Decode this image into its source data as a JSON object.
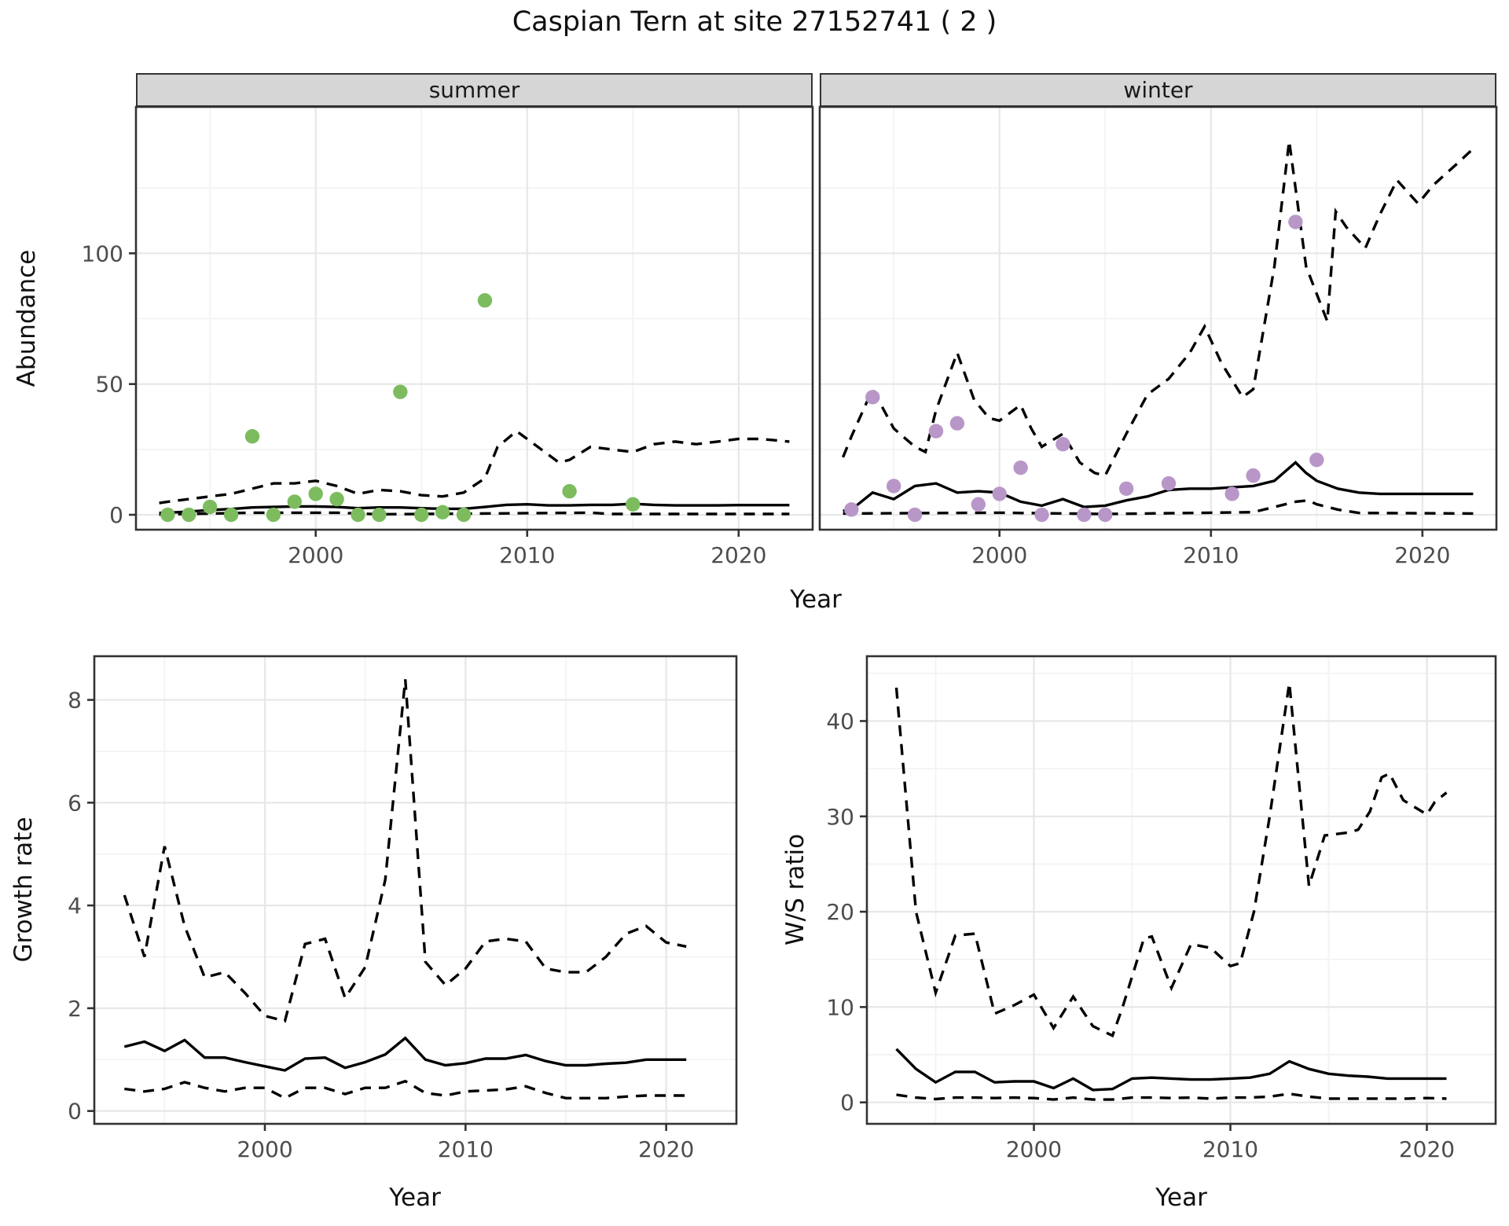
{
  "title": "Caspian Tern at site 27152741 ( 2 )",
  "colors": {
    "summer_point": "#7cbc5e",
    "winter_point": "#b897c8",
    "line": "#000000",
    "grid_major": "#e7e7e7",
    "grid_minor": "#f3f3f3",
    "panel_border": "#333333",
    "strip_bg": "#d6d6d6",
    "tick_text": "#4d4d4d"
  },
  "top_row": {
    "ylabel": "Abundance",
    "xlabel": "Year"
  },
  "chart_data": [
    {
      "id": "summer-abundance",
      "type": "line+scatter",
      "facet_label": "summer",
      "ylabel": "Abundance",
      "xlabel": "Year",
      "xlim": [
        1991.5,
        2023.5
      ],
      "ylim": [
        -5.7,
        156
      ],
      "xticks": [
        2000,
        2010,
        2020
      ],
      "xticks_minor": [
        1995,
        2005,
        2015
      ],
      "yticks": [
        0,
        50,
        100
      ],
      "yticks_minor": [
        25,
        75,
        125
      ],
      "show_y_labels": true,
      "points": {
        "name": "observed-count",
        "x": [
          1993,
          1994,
          1995,
          1996,
          1997,
          1998,
          1999,
          2000,
          2001,
          2002,
          2003,
          2004,
          2005,
          2006,
          2007,
          2008,
          2012,
          2015
        ],
        "y": [
          0,
          0,
          3,
          0,
          30,
          0,
          5,
          8,
          6,
          0,
          0,
          47,
          0,
          1,
          0,
          82,
          9,
          4
        ]
      },
      "series": [
        {
          "name": "median",
          "style": "solid",
          "x": [
            1992.6,
            1993,
            1994,
            1995,
            1996,
            1997,
            1998,
            1999,
            2000,
            2001,
            2002,
            2003,
            2004,
            2005,
            2006,
            2007,
            2008,
            2009,
            2010,
            2011,
            2012,
            2013,
            2014,
            2015,
            2016,
            2017,
            2018,
            2019,
            2020,
            2021,
            2022.4
          ],
          "y": [
            0.7,
            0.8,
            1.2,
            1.8,
            2.2,
            2.8,
            3,
            3.2,
            3.2,
            3,
            2.5,
            2.8,
            2.8,
            2.5,
            2.3,
            2.3,
            3,
            3.8,
            4,
            3.6,
            3.6,
            3.8,
            3.8,
            4.2,
            3.8,
            3.6,
            3.6,
            3.6,
            3.7,
            3.7,
            3.7
          ]
        },
        {
          "name": "upper_ci",
          "style": "dashed",
          "x": [
            1992.6,
            1993,
            1994,
            1995,
            1996,
            1997,
            1998,
            1999,
            2000,
            2001,
            2002,
            2003,
            2004,
            2005,
            2006,
            2007,
            2008,
            2008.6,
            2009.5,
            2010.5,
            2011.5,
            2012,
            2013,
            2014,
            2015,
            2016,
            2017,
            2018,
            2019,
            2020,
            2021,
            2022.4
          ],
          "y": [
            4.5,
            5,
            6,
            7,
            8,
            10,
            12,
            12,
            13,
            11,
            8,
            9.5,
            9,
            7.5,
            7,
            8.5,
            14,
            26,
            32,
            26,
            20,
            21,
            26,
            25,
            24,
            27,
            28,
            27,
            28,
            29,
            29,
            28
          ]
        },
        {
          "name": "lower_ci",
          "style": "dashed",
          "x": [
            1992.6,
            1997,
            2001,
            2003,
            2013,
            2014,
            2022.4
          ],
          "y": [
            0.1,
            0.8,
            0.8,
            0.2,
            0.8,
            0.3,
            0.3
          ]
        }
      ]
    },
    {
      "id": "winter-abundance",
      "type": "line+scatter",
      "facet_label": "winter",
      "ylabel": "Abundance",
      "xlabel": "Year",
      "xlim": [
        1991.5,
        2023.5
      ],
      "ylim": [
        -5.7,
        156
      ],
      "xticks": [
        2000,
        2010,
        2020
      ],
      "xticks_minor": [
        1995,
        2005,
        2015
      ],
      "yticks": [
        0,
        50,
        100
      ],
      "yticks_minor": [
        25,
        75,
        125
      ],
      "show_y_labels": false,
      "points": {
        "name": "observed-count",
        "x": [
          1993,
          1994,
          1995,
          1996,
          1997,
          1998,
          1999,
          2000,
          2001,
          2002,
          2003,
          2004,
          2005,
          2006,
          2008,
          2011,
          2012,
          2014,
          2015
        ],
        "y": [
          2,
          45,
          11,
          0,
          32,
          35,
          4,
          8,
          18,
          0,
          27,
          0,
          0,
          10,
          12,
          8,
          15,
          112,
          21
        ]
      },
      "series": [
        {
          "name": "median",
          "style": "solid",
          "x": [
            1992.6,
            1993,
            1994,
            1995,
            1996,
            1997,
            1998,
            1999,
            2000,
            2001,
            2002,
            2003,
            2004,
            2005,
            2006,
            2007,
            2008,
            2009,
            2010,
            2011,
            2012,
            2013,
            2014,
            2014.5,
            2015,
            2016,
            2017,
            2018,
            2019,
            2020,
            2021,
            2022.4
          ],
          "y": [
            1.5,
            2,
            8.5,
            6,
            11,
            12,
            8.5,
            9,
            8.5,
            5,
            3.5,
            6,
            3,
            3.5,
            5.5,
            7,
            9.5,
            10,
            10,
            10.5,
            11,
            13,
            20,
            16,
            13,
            10,
            8.5,
            8,
            8,
            8,
            8,
            8
          ]
        },
        {
          "name": "upper_ci",
          "style": "dashed",
          "x": [
            1992.6,
            1993,
            1994,
            1995,
            1996,
            1996.5,
            1997,
            1998,
            1998.8,
            1999.5,
            2000,
            2001,
            2001.5,
            2002,
            2003,
            2003.8,
            2004.5,
            2005,
            2006,
            2007,
            2008,
            2009,
            2009.7,
            2010.5,
            2011.5,
            2012,
            2013,
            2013.7,
            2014.5,
            2015.5,
            2015.9,
            2016.4,
            2017.3,
            2018,
            2018.8,
            2019.8,
            2020.5,
            2021.6,
            2022.4
          ],
          "y": [
            22,
            30,
            48,
            33,
            26,
            24,
            40,
            62,
            44,
            37,
            36,
            42,
            33,
            26,
            31,
            20,
            16,
            15,
            31,
            46,
            52,
            62,
            72,
            58,
            45,
            48,
            95,
            143,
            95,
            74,
            116,
            110,
            102,
            115,
            128,
            119,
            126,
            134,
            140
          ]
        },
        {
          "name": "lower_ci",
          "style": "dashed",
          "x": [
            1992.6,
            2000,
            2005,
            2010,
            2012,
            2013,
            2014,
            2014.6,
            2015,
            2016,
            2017,
            2022.4
          ],
          "y": [
            0.5,
            0.8,
            0.3,
            0.8,
            1,
            3,
            5,
            5.5,
            4,
            2,
            0.7,
            0.5
          ]
        }
      ]
    },
    {
      "id": "growth-rate",
      "type": "line",
      "facet_label": "",
      "ylabel": "Growth rate",
      "xlabel": "Year",
      "xlim": [
        1991.5,
        2023.5
      ],
      "ylim": [
        -0.25,
        8.85
      ],
      "xticks": [
        2000,
        2010,
        2020
      ],
      "xticks_minor": [
        1995,
        2005,
        2015
      ],
      "yticks": [
        0,
        2,
        4,
        6,
        8
      ],
      "yticks_minor": [
        1,
        3,
        5,
        7
      ],
      "show_y_labels": true,
      "series": [
        {
          "name": "median",
          "style": "solid",
          "x": [
            1993,
            1994,
            1995,
            1996,
            1997,
            1998,
            1999,
            2000,
            2001,
            2002,
            2003,
            2004,
            2005,
            2006,
            2007,
            2008,
            2009,
            2010,
            2011,
            2012,
            2013,
            2014,
            2015,
            2016,
            2017,
            2018,
            2019,
            2020,
            2021
          ],
          "y": [
            1.25,
            1.35,
            1.17,
            1.38,
            1.04,
            1.04,
            0.95,
            0.87,
            0.79,
            1.02,
            1.04,
            0.84,
            0.95,
            1.1,
            1.42,
            1.0,
            0.89,
            0.93,
            1.02,
            1.02,
            1.09,
            0.97,
            0.89,
            0.89,
            0.92,
            0.94,
            1.0,
            1.0,
            1.0
          ]
        },
        {
          "name": "upper_ci",
          "style": "dashed",
          "x": [
            1993,
            1994,
            1995,
            1996,
            1997,
            1998,
            1999,
            2000,
            2001,
            2002,
            2003,
            2004,
            2005,
            2006,
            2007,
            2008,
            2009,
            2010,
            2011,
            2012,
            2013,
            2014,
            2015,
            2016,
            2017,
            2018,
            2019,
            2020,
            2021
          ],
          "y": [
            4.2,
            3.0,
            5.15,
            3.6,
            2.6,
            2.7,
            2.3,
            1.85,
            1.75,
            3.25,
            3.35,
            2.2,
            2.8,
            4.5,
            8.4,
            2.9,
            2.45,
            2.77,
            3.3,
            3.35,
            3.3,
            2.77,
            2.7,
            2.7,
            3.0,
            3.45,
            3.6,
            3.28,
            3.2
          ]
        },
        {
          "name": "lower_ci",
          "style": "dashed",
          "x": [
            1993,
            1994,
            1995,
            1996,
            1997,
            1998,
            1999,
            2000,
            2001,
            2002,
            2003,
            2004,
            2005,
            2006,
            2007,
            2008,
            2009,
            2010,
            2011,
            2012,
            2013,
            2014,
            2015,
            2016,
            2017,
            2018,
            2019,
            2020,
            2021
          ],
          "y": [
            0.43,
            0.38,
            0.43,
            0.56,
            0.45,
            0.38,
            0.45,
            0.45,
            0.25,
            0.45,
            0.45,
            0.33,
            0.45,
            0.45,
            0.58,
            0.35,
            0.3,
            0.38,
            0.4,
            0.42,
            0.48,
            0.35,
            0.25,
            0.25,
            0.25,
            0.28,
            0.3,
            0.3,
            0.3
          ]
        }
      ]
    },
    {
      "id": "ws-ratio",
      "type": "line",
      "facet_label": "",
      "ylabel": "W/S ratio",
      "xlabel": "Year",
      "xlim": [
        1991.5,
        2023.5
      ],
      "ylim": [
        -2.25,
        46.8
      ],
      "xticks": [
        2000,
        2010,
        2020
      ],
      "xticks_minor": [
        1995,
        2005,
        2015
      ],
      "yticks": [
        0,
        10,
        20,
        30,
        40
      ],
      "yticks_minor": [
        5,
        15,
        25,
        35,
        45
      ],
      "show_y_labels": true,
      "series": [
        {
          "name": "median",
          "style": "solid",
          "x": [
            1993,
            1994,
            1995,
            1996,
            1997,
            1998,
            1999,
            2000,
            2001,
            2002,
            2003,
            2004,
            2005,
            2006,
            2007,
            2008,
            2009,
            2010,
            2011,
            2012,
            2013,
            2014,
            2015,
            2016,
            2017,
            2018,
            2019,
            2020,
            2021
          ],
          "y": [
            5.6,
            3.5,
            2.1,
            3.2,
            3.2,
            2.1,
            2.2,
            2.2,
            1.5,
            2.5,
            1.3,
            1.4,
            2.5,
            2.6,
            2.5,
            2.4,
            2.4,
            2.5,
            2.6,
            3.0,
            4.3,
            3.5,
            3.0,
            2.8,
            2.7,
            2.5,
            2.5,
            2.5,
            2.5
          ]
        },
        {
          "name": "upper_ci",
          "style": "dashed",
          "x": [
            1993,
            1994,
            1995,
            1996,
            1997,
            1998,
            1999,
            2000,
            2001,
            2002,
            2003,
            2004,
            2004.5,
            2005.6,
            2006,
            2007,
            2008,
            2009,
            2010,
            2010.5,
            2011.2,
            2012,
            2013,
            2014,
            2014.8,
            2016,
            2016.5,
            2017.1,
            2017.7,
            2018.1,
            2018.8,
            2020,
            2020.4,
            2021
          ],
          "y": [
            43.5,
            20,
            11.5,
            17.5,
            17.7,
            9.3,
            10.2,
            11.3,
            7.8,
            11.1,
            8,
            7,
            9.9,
            17.2,
            17.4,
            12,
            16.6,
            16.2,
            14.3,
            14.6,
            20,
            30,
            44,
            22.7,
            28,
            28.3,
            28.6,
            30.5,
            34.1,
            34.5,
            31.7,
            30.2,
            31.5,
            32.5
          ]
        },
        {
          "name": "lower_ci",
          "style": "dashed",
          "x": [
            1993,
            1994,
            1995,
            1996,
            1997,
            1998,
            1999,
            2000,
            2001,
            2002,
            2003,
            2004,
            2005,
            2006,
            2007,
            2008,
            2009,
            2010,
            2011,
            2012,
            2013,
            2014,
            2015,
            2016,
            2017,
            2018,
            2019,
            2020,
            2021
          ],
          "y": [
            0.8,
            0.5,
            0.35,
            0.5,
            0.5,
            0.45,
            0.5,
            0.45,
            0.3,
            0.5,
            0.3,
            0.3,
            0.5,
            0.5,
            0.45,
            0.5,
            0.4,
            0.5,
            0.5,
            0.6,
            0.9,
            0.6,
            0.4,
            0.4,
            0.4,
            0.4,
            0.4,
            0.45,
            0.4
          ]
        }
      ]
    }
  ]
}
